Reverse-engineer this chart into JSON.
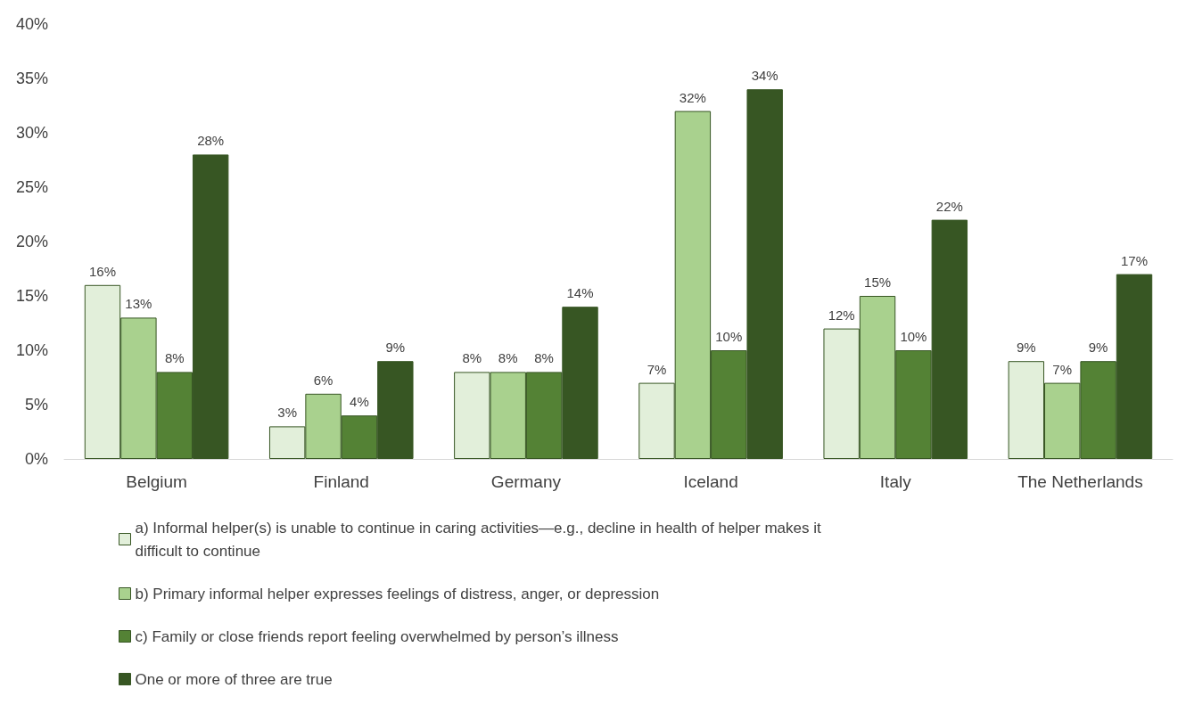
{
  "chart_data": {
    "type": "bar",
    "categories": [
      "Belgium",
      "Finland",
      "Germany",
      "Iceland",
      "Italy",
      "The Netherlands"
    ],
    "series": [
      {
        "name": "a) Informal helper(s) is unable to continue in caring activities—e.g., decline in health of helper makes it difficult to continue",
        "color": "#e2efda",
        "values": [
          16,
          3,
          8,
          7,
          12,
          9
        ],
        "value_labels": [
          "16%",
          "3%",
          "8%",
          "7%",
          "12%",
          "9%"
        ]
      },
      {
        "name": "b) Primary informal helper expresses feelings of distress, anger, or depression",
        "color": "#a9d18e",
        "values": [
          13,
          6,
          8,
          32,
          15,
          7
        ],
        "value_labels": [
          "13%",
          "6%",
          "8%",
          "32%",
          "15%",
          "7%"
        ]
      },
      {
        "name": "c) Family or close friends report feeling overwhelmed by person’s illness",
        "color": "#548235",
        "values": [
          8,
          4,
          8,
          10,
          10,
          9
        ],
        "value_labels": [
          "8%",
          "4%",
          "8%",
          "10%",
          "10%",
          "9%"
        ]
      },
      {
        "name": "One or more of three are true",
        "color": "#375623",
        "values": [
          28,
          9,
          14,
          34,
          22,
          17
        ],
        "value_labels": [
          "28%",
          "9%",
          "14%",
          "34%",
          "22%",
          "17%"
        ]
      }
    ],
    "ylim": [
      0,
      40
    ],
    "yticks": [
      {
        "value": 0,
        "label": "0%"
      },
      {
        "value": 5,
        "label": "5%"
      },
      {
        "value": 10,
        "label": "10%"
      },
      {
        "value": 15,
        "label": "15%"
      },
      {
        "value": 20,
        "label": "20%"
      },
      {
        "value": 25,
        "label": "25%"
      },
      {
        "value": 30,
        "label": "30%"
      },
      {
        "value": 35,
        "label": "35%"
      },
      {
        "value": 40,
        "label": "40%"
      }
    ],
    "grid": false,
    "legend": "bottom"
  }
}
